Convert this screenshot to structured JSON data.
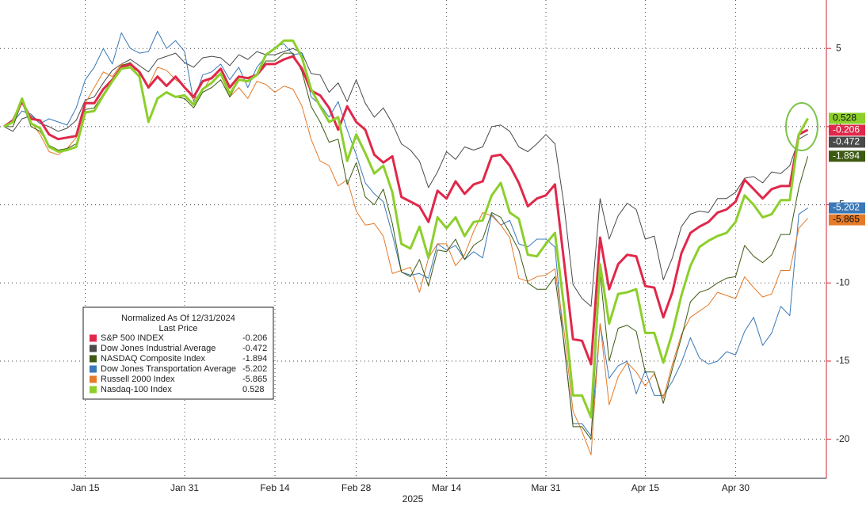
{
  "chart_data": {
    "type": "line",
    "legend_title": "Normalized As Of 12/31/2024",
    "legend_subtitle": "Last Price",
    "x_axis_label": "2025",
    "categories": [
      null,
      null,
      null,
      null,
      null,
      null,
      null,
      null,
      null,
      "Jan 15",
      null,
      null,
      null,
      null,
      null,
      null,
      null,
      null,
      null,
      null,
      "Jan 31",
      null,
      null,
      null,
      null,
      null,
      null,
      null,
      null,
      null,
      "Feb 14",
      null,
      null,
      null,
      null,
      null,
      null,
      null,
      null,
      "Feb 28",
      null,
      null,
      null,
      null,
      null,
      null,
      null,
      null,
      null,
      "Mar 14",
      null,
      null,
      null,
      null,
      null,
      null,
      null,
      null,
      null,
      null,
      "Mar 31",
      null,
      null,
      null,
      null,
      null,
      null,
      null,
      null,
      null,
      null,
      "Apr 15",
      null,
      null,
      null,
      null,
      null,
      null,
      null,
      null,
      null,
      "Apr 30",
      null,
      null,
      null,
      null,
      null,
      null,
      null,
      null
    ],
    "ylim": [
      -22.5,
      8.1
    ],
    "yticks": [
      5,
      0,
      -5,
      -10,
      -15,
      -20
    ],
    "grid": true,
    "series": [
      {
        "name": "S&P 500 INDEX",
        "color": "#e0284a",
        "width": 3,
        "values": [
          0,
          0.4,
          1.6,
          0.5,
          0.4,
          -0.5,
          -0.8,
          -0.7,
          -0.6,
          1.5,
          1.5,
          2.4,
          3.0,
          3.8,
          4.0,
          3.5,
          2.5,
          3.2,
          2.6,
          3.2,
          2.5,
          1.9,
          2.9,
          3.1,
          3.7,
          2.5,
          3.2,
          3.1,
          3.3,
          4.0,
          4.0,
          4.3,
          4.5,
          3.7,
          2.3,
          2.0,
          1.2,
          -0.2,
          1.3,
          0.3,
          -0.2,
          -1.8,
          -2.3,
          -1.9,
          -4.5,
          -4.8,
          -5.1,
          -6.1,
          -4.1,
          -4.6,
          -3.5,
          -4.3,
          -3.7,
          -3.5,
          -1.9,
          -1.8,
          -2.5,
          -3.6,
          -5.1,
          -4.6,
          -4.4,
          -3.7,
          -8.6,
          -13.6,
          -13.7,
          -15.2,
          -7.1,
          -10.4,
          -8.8,
          -8.2,
          -8.3,
          -10.2,
          -10.3,
          -12.2,
          -10.6,
          -8.1,
          -6.8,
          -6.4,
          -6.1,
          -5.5,
          -5.3,
          -4.8,
          -3.4,
          -4.0,
          -4.6,
          -4.0,
          -3.8,
          -3.8,
          -0.5,
          -0.206
        ]
      },
      {
        "name": "Dow Jones Industrial Average",
        "color": "#4a4a4a",
        "width": 1,
        "values": [
          0,
          -0.3,
          0.5,
          0.7,
          0.2,
          0.0,
          -0.3,
          -0.1,
          0.4,
          1.7,
          1.9,
          2.8,
          3.6,
          4.0,
          4.3,
          3.9,
          3.5,
          4.3,
          4.5,
          4.7,
          4.1,
          3.8,
          4.4,
          4.5,
          4.4,
          3.9,
          4.6,
          4.3,
          4.8,
          4.6,
          4.6,
          4.8,
          5.0,
          4.7,
          3.4,
          3.3,
          2.2,
          2.8,
          1.6,
          3.0,
          1.5,
          0.6,
          1.2,
          0.2,
          -1.1,
          -1.5,
          -2.2,
          -3.9,
          -2.9,
          -1.6,
          -2.1,
          -1.3,
          -1.5,
          -1.3,
          0.0,
          0.1,
          -0.3,
          -1.3,
          -1.6,
          -1.1,
          -0.5,
          -1.1,
          -5.0,
          -10.1,
          -11.0,
          -11.5,
          -4.6,
          -7.2,
          -5.7,
          -4.9,
          -5.3,
          -7.2,
          -7.0,
          -9.8,
          -8.4,
          -6.4,
          -5.6,
          -5.4,
          -5.5,
          -4.6,
          -4.6,
          -4.2,
          -3.3,
          -3.2,
          -3.6,
          -2.9,
          -3.0,
          -2.5,
          -0.8,
          -0.472
        ]
      },
      {
        "name": "NASDAQ Composite Index",
        "color": "#3d5a12",
        "width": 1,
        "values": [
          0,
          0.0,
          1.6,
          0.0,
          -0.3,
          -1.2,
          -1.5,
          -1.4,
          -1.1,
          1.1,
          1.2,
          2.1,
          3.0,
          3.9,
          4.1,
          3.4,
          0.4,
          1.8,
          2.2,
          1.9,
          1.8,
          1.2,
          2.2,
          2.5,
          3.0,
          1.9,
          3.0,
          2.9,
          3.3,
          4.2,
          4.2,
          4.7,
          4.7,
          3.5,
          1.3,
          0.3,
          -1.0,
          -0.8,
          -3.7,
          -2.3,
          -4.5,
          -5.0,
          -4.0,
          -6.2,
          -9.3,
          -9.6,
          -8.5,
          -10.2,
          -7.9,
          -8.0,
          -7.2,
          -8.5,
          -7.6,
          -7.2,
          -5.5,
          -5.8,
          -6.8,
          -7.9,
          -10.0,
          -10.4,
          -10.4,
          -9.6,
          -13.8,
          -19.2,
          -19.2,
          -20.0,
          -9.4,
          -15.0,
          -12.9,
          -12.7,
          -13.1,
          -15.7,
          -15.7,
          -17.7,
          -15.5,
          -13.5,
          -11.2,
          -10.6,
          -10.4,
          -10.0,
          -9.7,
          -9.6,
          -7.6,
          -8.3,
          -8.7,
          -8.2,
          -6.9,
          -6.9,
          -3.9,
          -1.894
        ]
      },
      {
        "name": "Dow Jones Transportation Average",
        "color": "#3a78b8",
        "width": 1,
        "values": [
          0,
          0.3,
          1.0,
          0.8,
          0.2,
          0.5,
          0.3,
          0.1,
          1.2,
          3.0,
          3.8,
          5.0,
          4.0,
          6.0,
          5.0,
          4.7,
          4.8,
          6.1,
          5.0,
          5.5,
          4.8,
          1.6,
          3.3,
          3.5,
          4.0,
          3.0,
          3.8,
          2.5,
          3.8,
          4.5,
          5.1,
          5.3,
          4.6,
          4.7,
          1.9,
          1.4,
          0.6,
          1.6,
          -0.2,
          -1.8,
          -3.6,
          -4.3,
          -4.8,
          -6.9,
          -9.3,
          -9.5,
          -9.4,
          -9.7,
          -7.5,
          -7.9,
          -7.6,
          -8.5,
          -8.0,
          -8.4,
          -5.6,
          -6.3,
          -6.0,
          -7.5,
          -7.7,
          -7.2,
          -7.2,
          -7.7,
          -14.0,
          -19.0,
          -19.0,
          -19.8,
          -12.6,
          -16.1,
          -15.3,
          -15.0,
          -17.1,
          -15.6,
          -17.2,
          -17.2,
          -16.3,
          -15.1,
          -13.5,
          -14.8,
          -15.2,
          -15.0,
          -14.4,
          -14.6,
          -13.1,
          -12.2,
          -14.0,
          -13.2,
          -11.5,
          -12.1,
          -5.6,
          -5.202
        ]
      },
      {
        "name": "Russell 2000 Index",
        "color": "#e57a28",
        "width": 1,
        "values": [
          0,
          0.3,
          1.7,
          0.3,
          -0.5,
          -1.6,
          -1.8,
          -1.4,
          -0.7,
          1.5,
          2.5,
          3.5,
          3.2,
          4.0,
          3.8,
          3.5,
          2.6,
          3.8,
          3.6,
          3.0,
          2.6,
          1.7,
          2.3,
          3.2,
          3.3,
          1.9,
          2.5,
          1.8,
          2.9,
          2.7,
          2.2,
          2.6,
          2.4,
          1.3,
          -0.8,
          -2.2,
          -2.5,
          -3.8,
          -3.4,
          -5.4,
          -6.3,
          -6.2,
          -7.0,
          -9.4,
          -9.2,
          -9.0,
          -10.6,
          -8.4,
          -7.5,
          -7.5,
          -8.9,
          -8.2,
          -6.7,
          -5.5,
          -5.7,
          -6.3,
          -7.1,
          -9.7,
          -9.9,
          -9.6,
          -9.5,
          -9.1,
          -13.0,
          -18.2,
          -19.5,
          -21.0,
          -12.6,
          -17.8,
          -16.0,
          -15.1,
          -15.7,
          -16.6,
          -15.8,
          -17.4,
          -15.2,
          -13.3,
          -12.2,
          -11.8,
          -11.4,
          -10.6,
          -10.8,
          -11.0,
          -9.6,
          -10.3,
          -10.9,
          -10.7,
          -9.2,
          -9.2,
          -6.5,
          -5.865
        ]
      },
      {
        "name": "Nasdaq-100 Index",
        "color": "#8ccf2b",
        "width": 3,
        "values": [
          0,
          0.3,
          1.8,
          0.2,
          -0.1,
          -1.3,
          -1.6,
          -1.5,
          -1.3,
          0.9,
          1.0,
          2.0,
          2.9,
          3.7,
          3.8,
          3.2,
          0.3,
          1.8,
          2.2,
          1.9,
          2.0,
          1.4,
          2.4,
          2.8,
          3.4,
          2.1,
          3.0,
          2.9,
          3.3,
          4.6,
          5.0,
          5.5,
          5.5,
          4.4,
          2.4,
          1.3,
          0.3,
          0.6,
          -2.2,
          -0.5,
          -1.7,
          -3.0,
          -2.5,
          -4.2,
          -7.5,
          -7.8,
          -6.4,
          -8.4,
          -5.8,
          -6.5,
          -5.8,
          -7.0,
          -6.1,
          -6.0,
          -4.4,
          -3.6,
          -5.5,
          -5.9,
          -8.2,
          -8.3,
          -7.5,
          -6.8,
          -11.5,
          -17.2,
          -17.2,
          -18.6,
          -8.8,
          -12.6,
          -10.7,
          -10.6,
          -10.4,
          -13.2,
          -13.2,
          -15.1,
          -13.2,
          -10.8,
          -8.9,
          -7.7,
          -7.3,
          -7.0,
          -6.8,
          -6.1,
          -4.4,
          -5.0,
          -5.8,
          -5.6,
          -4.7,
          -4.7,
          -0.5,
          0.528
        ]
      }
    ]
  }
}
